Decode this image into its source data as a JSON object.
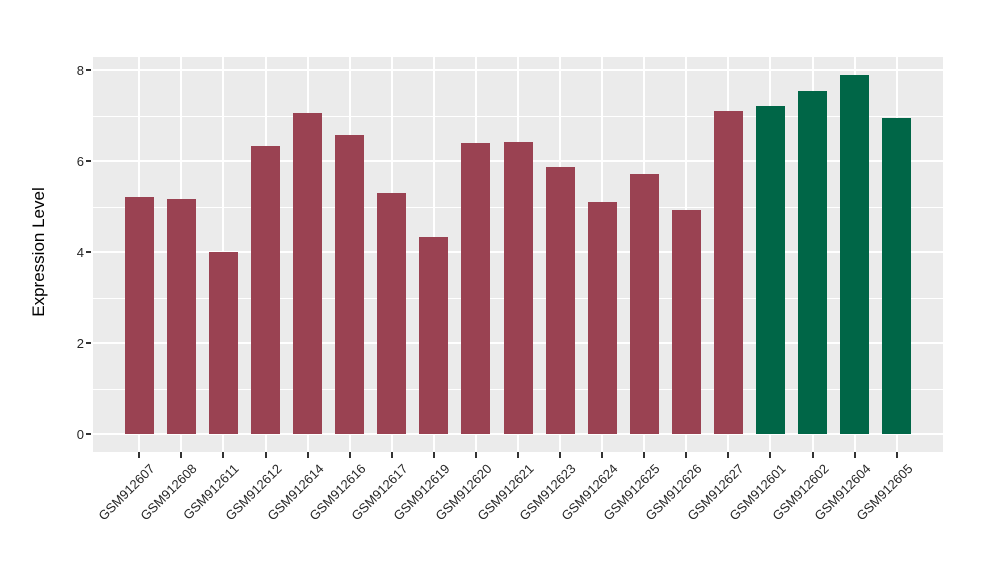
{
  "figure": {
    "background": "#FFFFFF",
    "panel_background": "#EBEBEB",
    "gridline_color": "#FFFFFF",
    "tick_mark_color": "#333333",
    "axis_text_color": "#262626"
  },
  "chart_data": {
    "type": "bar",
    "title": "",
    "xlabel": "",
    "ylabel": "Expression Level",
    "categories": [
      "GSM912607",
      "GSM912608",
      "GSM912611",
      "GSM912612",
      "GSM912614",
      "GSM912616",
      "GSM912617",
      "GSM912619",
      "GSM912620",
      "GSM912621",
      "GSM912623",
      "GSM912624",
      "GSM912625",
      "GSM912626",
      "GSM912627",
      "GSM912601",
      "GSM912602",
      "GSM912604",
      "GSM912605"
    ],
    "values": [
      5.22,
      5.17,
      4.01,
      6.33,
      7.05,
      6.57,
      5.29,
      4.33,
      6.39,
      6.41,
      5.86,
      5.1,
      5.72,
      4.92,
      7.09,
      7.22,
      7.53,
      7.88,
      6.94
    ],
    "bar_color_groups": [
      "maroon",
      "maroon",
      "maroon",
      "maroon",
      "maroon",
      "maroon",
      "maroon",
      "maroon",
      "maroon",
      "maroon",
      "maroon",
      "maroon",
      "maroon",
      "maroon",
      "maroon",
      "green",
      "green",
      "green",
      "green"
    ],
    "palette": {
      "maroon": "#9A4252",
      "green": "#006647"
    },
    "yticks": [
      0,
      2,
      4,
      6,
      8
    ],
    "yminor": [
      1,
      3,
      5,
      7
    ],
    "ylim": [
      -0.4,
      8.3
    ],
    "grid": "horizontal major+minor, vertical major at category centers",
    "legend": "none"
  }
}
